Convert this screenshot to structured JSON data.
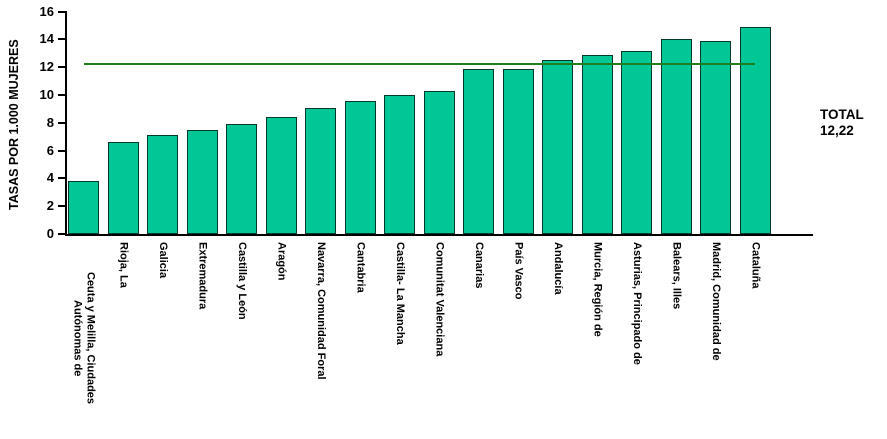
{
  "chart_data": {
    "type": "bar",
    "title": "",
    "ylabel": "TASAS POR 1.000 MUJERES",
    "xlabel": "",
    "ylim": [
      0,
      16
    ],
    "ytick_step": 2,
    "grid": false,
    "legend_position": "none",
    "categories": [
      "Ceuta y Melilla, Ciudades Autónomas de",
      "Rioja, La",
      "Galicia",
      "Extremadura",
      "Castilla y León",
      "Aragón",
      "Navarra, Comunidad Foral",
      "Cantabria",
      "Castilla- La Mancha",
      "Comunitat Valenciana",
      "Canarias",
      "País Vasco",
      "Andalucía",
      "Murcia, Región de",
      "Asturias, Principado de",
      "Balears, Illes",
      "Madrid, Comunidad de",
      "Cataluña"
    ],
    "values": [
      3.8,
      6.6,
      7.1,
      7.5,
      7.9,
      8.4,
      9.1,
      9.6,
      10.0,
      10.3,
      11.9,
      11.9,
      12.5,
      12.9,
      13.2,
      14.0,
      13.9,
      14.9
    ],
    "reference_line": {
      "value": 12.22,
      "color": "#1e7d1e"
    },
    "bar_color": "#00C795",
    "bar_border_color": "#04382c",
    "annotation": {
      "line1": "TOTAL",
      "line2": "12,22"
    }
  }
}
